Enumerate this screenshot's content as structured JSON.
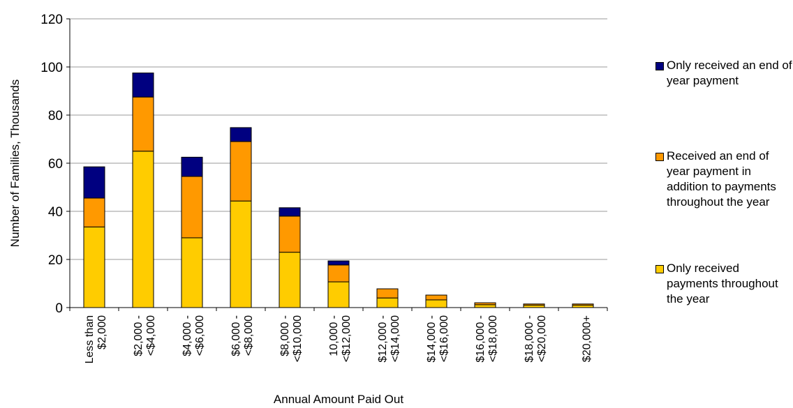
{
  "chart_data": {
    "type": "stacked_bar",
    "y_label": "Number of Families, Thousands",
    "x_label": "Annual Amount Paid Out",
    "categories": [
      "Less than\n$2,000",
      "$2,000 -\n<$4,000",
      "$4,000 -\n<$6,000",
      "$6,000 -\n<$8,000",
      "$8,000 -\n<$10,000",
      "10,000 -\n<$12,000",
      "$12,000 -\n<$14,000",
      "$14,000 -\n<$16,000",
      "$16,000 -\n<$18,000",
      "$18,000 -\n<$20,000",
      "$20,000+"
    ],
    "series": [
      {
        "name": "Only received payments throughout the year",
        "color": "#FFCC00",
        "values": [
          33.5,
          65,
          29,
          44.3,
          23,
          10.7,
          4,
          3.2,
          1.2,
          1,
          1
        ]
      },
      {
        "name": "Received an end of year payment in addition to payments throughout the year",
        "color": "#FF9900",
        "values": [
          12,
          22.5,
          25.5,
          24.7,
          15,
          7,
          3.8,
          2,
          0.8,
          0.5,
          0.5
        ]
      },
      {
        "name": "Only received an end of year payment",
        "color": "#000080",
        "values": [
          13,
          10,
          8,
          5.8,
          3.5,
          1.7,
          0,
          0,
          0,
          0,
          0
        ]
      }
    ],
    "ylim": [
      0,
      120
    ],
    "yticks": [
      0,
      20,
      40,
      60,
      80,
      100,
      120
    ],
    "grid": true
  }
}
